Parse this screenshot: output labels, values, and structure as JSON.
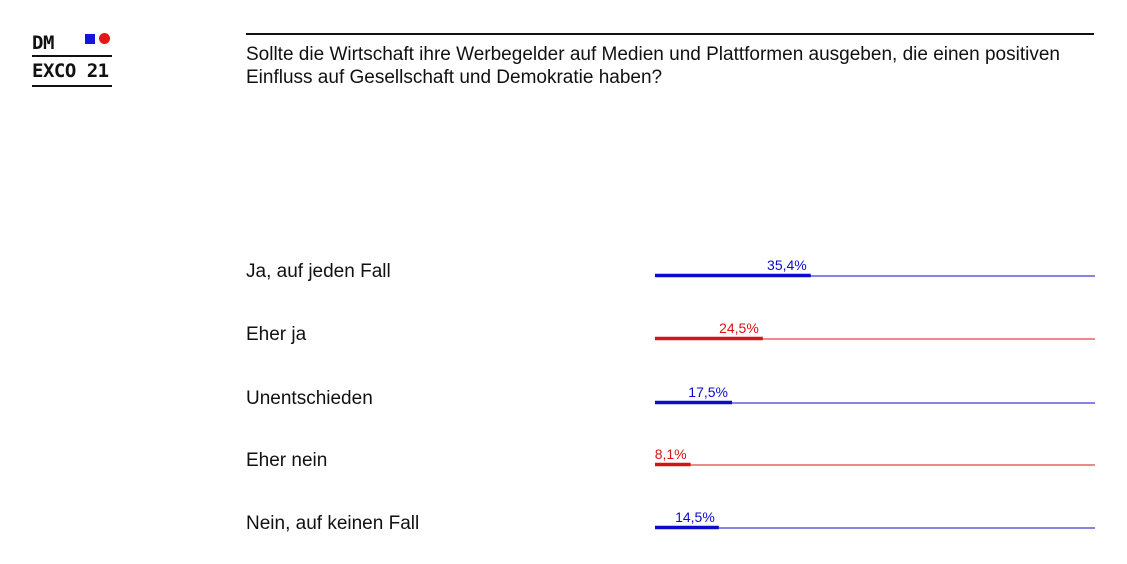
{
  "logo": {
    "line1": "DM",
    "line2": "EXCO 21",
    "square_color": "#1414e0",
    "dot_color": "#e51616"
  },
  "question": "Sollte die Wirtschaft ihre Werbegelder auf Medien und Plattformen ausgeben, die einen positiven Einfluss auf Gesellschaft und Demokratie haben?",
  "colors": {
    "blue": "#0b0bc9",
    "red": "#d71414"
  },
  "chart_data": {
    "type": "bar",
    "orientation": "horizontal",
    "title": "Sollte die Wirtschaft ihre Werbegelder auf Medien und Plattformen ausgeben, die einen positiven Einfluss auf Gesellschaft und Demokratie haben?",
    "unit": "%",
    "xlim": [
      0,
      100
    ],
    "categories": [
      "Ja, auf jeden Fall",
      "Eher ja",
      "Unentschieden",
      "Eher nein",
      "Nein, auf keinen Fall"
    ],
    "values": [
      35.4,
      24.5,
      17.5,
      8.1,
      14.5
    ],
    "value_labels": [
      "35,4%",
      "24,5%",
      "17,5%",
      "8,1%",
      "14,5%"
    ],
    "bar_colors": [
      "#0b0bc9",
      "#d71414",
      "#0b0bc9",
      "#d71414",
      "#0b0bc9"
    ]
  }
}
